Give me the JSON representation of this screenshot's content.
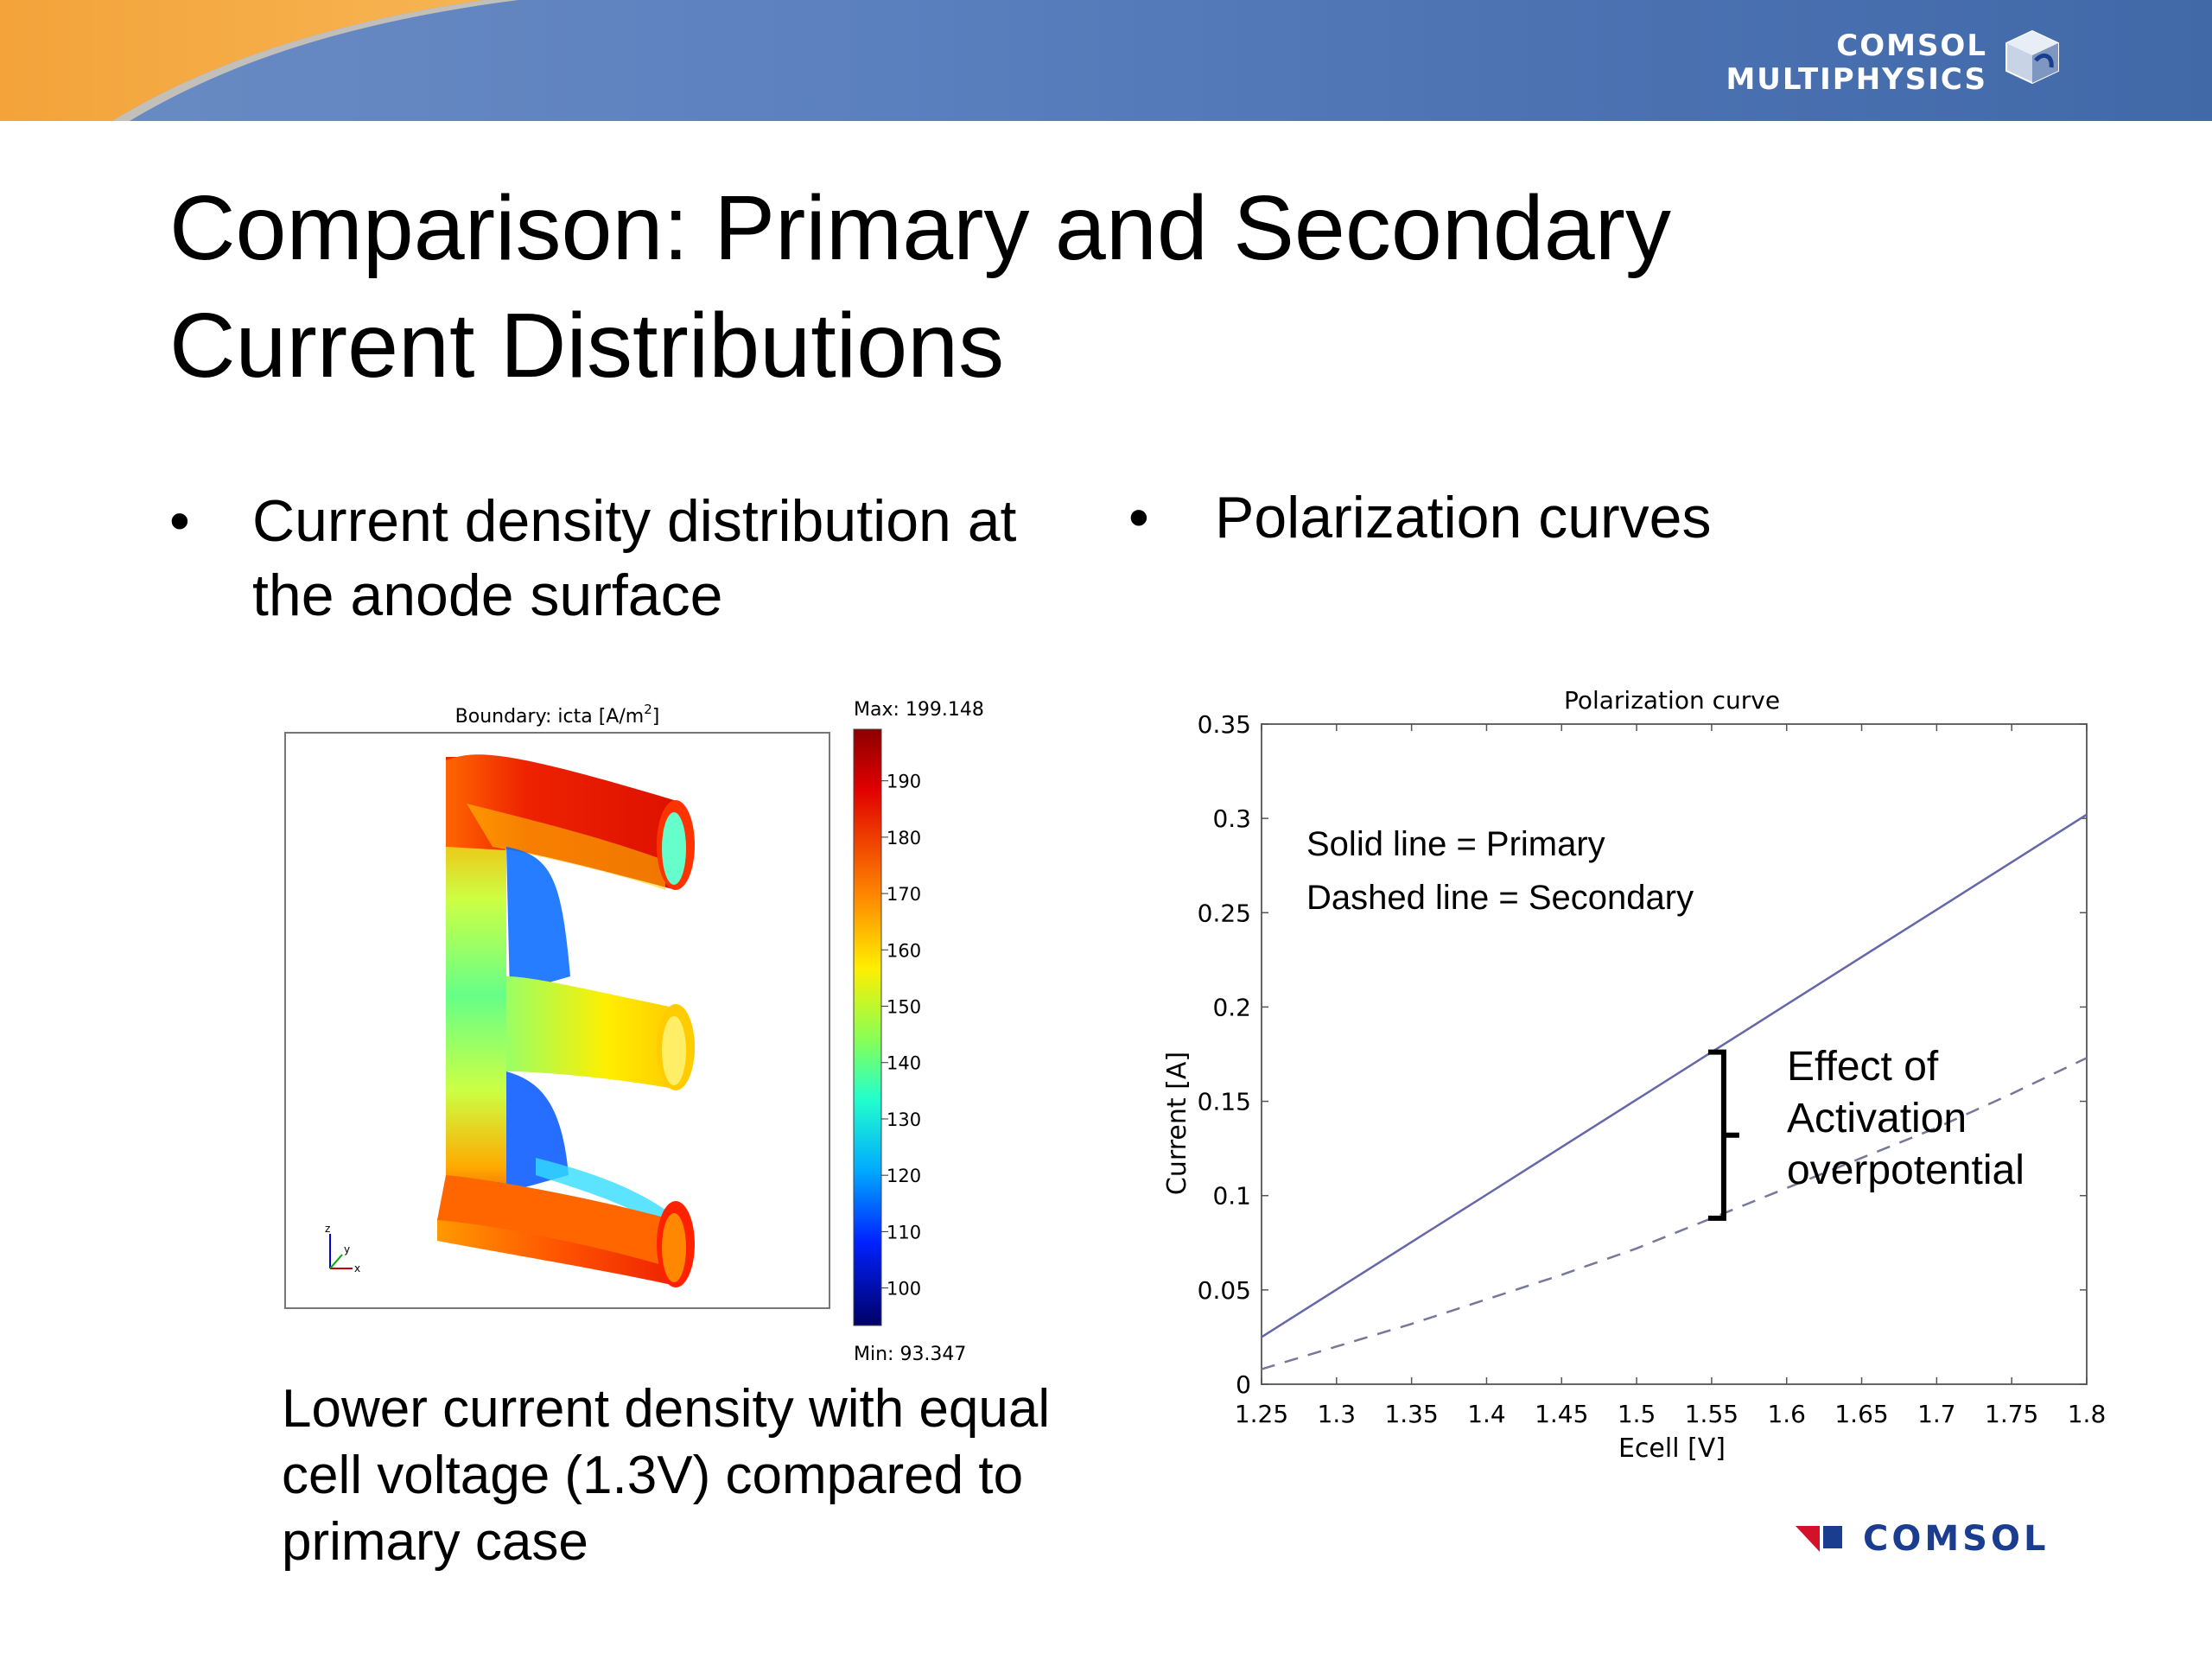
{
  "header": {
    "logo_line1": "COMSOL",
    "logo_line2": "MULTIPHYSICS",
    "logo_icon": "cube-logo-icon"
  },
  "slide": {
    "title_line1": "Comparison: Primary and Secondary",
    "title_line2": "Current Distributions"
  },
  "bullets": {
    "left_line1": "Current density distribution at",
    "left_line2": "the anode surface",
    "right": "Polarization curves",
    "marker": "•"
  },
  "plot3d": {
    "title": "Boundary: icta [A/m",
    "title_sup": "2",
    "title_end": "]",
    "max_label": "Max: 199.148",
    "min_label": "Min: 93.347",
    "colorbar_ticks": [
      "190",
      "180",
      "170",
      "160",
      "150",
      "140",
      "130",
      "120",
      "110",
      "100"
    ],
    "axis_icon": "xyz-axes-icon",
    "axis_labels": {
      "x": "x",
      "y": "y",
      "z": "z"
    },
    "range": [
      93.347,
      199.148
    ],
    "colors": {
      "high": "#cc0000",
      "mid": "#33ff99",
      "low": "#000088"
    }
  },
  "caption": {
    "line1": "Lower current density with equal",
    "line2": "cell voltage (1.3V) compared to",
    "line3": "primary case"
  },
  "chart_data": {
    "type": "line",
    "title": "Polarization curve",
    "xlabel": "Ecell [V]",
    "ylabel": "Current [A]",
    "xlim": [
      1.25,
      1.8
    ],
    "ylim": [
      0,
      0.35
    ],
    "xticks": [
      "1.25",
      "1.3",
      "1.35",
      "1.4",
      "1.45",
      "1.5",
      "1.55",
      "1.6",
      "1.65",
      "1.7",
      "1.75",
      "1.8"
    ],
    "yticks": [
      "0",
      "0.05",
      "0.1",
      "0.15",
      "0.2",
      "0.25",
      "0.3",
      "0.35"
    ],
    "grid": false,
    "annotations": {
      "solid": "Solid line = Primary",
      "dashed": "Dashed line = Secondary",
      "effect_line1": "Effect of",
      "effect_line2": "Activation",
      "effect_line3": "overpotential"
    },
    "series": [
      {
        "style": "solid",
        "color": "#6666aa",
        "x": [
          1.25,
          1.3,
          1.35,
          1.4,
          1.45,
          1.5,
          1.55,
          1.6,
          1.65,
          1.7,
          1.75,
          1.8
        ],
        "y": [
          0.025,
          0.0502,
          0.0754,
          0.1005,
          0.1257,
          0.1509,
          0.1761,
          0.2013,
          0.2265,
          0.2516,
          0.2768,
          0.302
        ]
      },
      {
        "style": "dashed",
        "color": "#777799",
        "x": [
          1.25,
          1.3,
          1.35,
          1.4,
          1.45,
          1.5,
          1.55,
          1.6,
          1.65,
          1.7,
          1.75,
          1.8
        ],
        "y": [
          0.008,
          0.02,
          0.032,
          0.045,
          0.058,
          0.072,
          0.088,
          0.104,
          0.12,
          0.136,
          0.154,
          0.173
        ]
      }
    ]
  },
  "bottom_logo": {
    "text": "COMSOL",
    "colors": {
      "red": "#d3112b",
      "blue": "#1b3d8f"
    }
  }
}
